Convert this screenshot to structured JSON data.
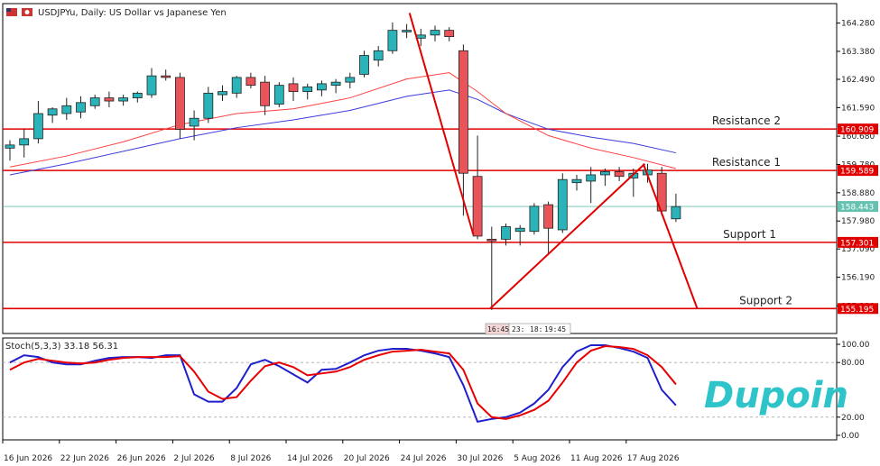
{
  "header": {
    "symbol_title": "USDJPYu, Daily:  US Dollar vs Japanese Yen",
    "stoch_title": "Stoch(5,3,3) 33.18 56.31"
  },
  "logo": {
    "text": "Dupoin"
  },
  "colors": {
    "bull": "#2ab3b8",
    "bear": "#e8545a",
    "ma_fast": "#ff4040",
    "ma_slow": "#3b3bdc",
    "level": "#e00000",
    "current": "#66c2b0",
    "stoch_main": "#1f1fcc",
    "stoch_signal": "#e80000"
  },
  "time_tags": [
    "16:45",
    "23:",
    "18:",
    "19:45"
  ],
  "chart_data": {
    "type": "candlestick",
    "title": "USDJPYu, Daily:  US Dollar vs Japanese Yen",
    "ylim": [
      154.4,
      164.9
    ],
    "price_ticks": [
      "164.280",
      "163.380",
      "162.490",
      "161.590",
      "160.680",
      "159.780",
      "158.880",
      "157.980",
      "157.090",
      "156.190",
      "155.280"
    ],
    "date_labels": [
      {
        "i": 0,
        "label": "16 Jun 2026"
      },
      {
        "i": 4,
        "label": "22 Jun 2026"
      },
      {
        "i": 8,
        "label": "26 Jun 2026"
      },
      {
        "i": 12,
        "label": "2 Jul 2026"
      },
      {
        "i": 16,
        "label": "8 Jul 2026"
      },
      {
        "i": 20,
        "label": "14 Jul 2026"
      },
      {
        "i": 24,
        "label": "20 Jul 2026"
      },
      {
        "i": 28,
        "label": "24 Jul 2026"
      },
      {
        "i": 32,
        "label": "30 Jul 2026"
      },
      {
        "i": 36,
        "label": "5 Aug 2026"
      },
      {
        "i": 40,
        "label": "11 Aug 2026"
      },
      {
        "i": 44,
        "label": "17 Aug 2026"
      }
    ],
    "candles": [
      {
        "o": 160.3,
        "h": 160.55,
        "l": 159.9,
        "c": 160.4
      },
      {
        "o": 160.4,
        "h": 160.9,
        "l": 160.0,
        "c": 160.6
      },
      {
        "o": 160.6,
        "h": 161.8,
        "l": 160.45,
        "c": 161.4
      },
      {
        "o": 161.35,
        "h": 161.6,
        "l": 161.1,
        "c": 161.55
      },
      {
        "o": 161.4,
        "h": 161.9,
        "l": 161.2,
        "c": 161.65
      },
      {
        "o": 161.45,
        "h": 161.95,
        "l": 161.25,
        "c": 161.75
      },
      {
        "o": 161.65,
        "h": 162.0,
        "l": 161.55,
        "c": 161.9
      },
      {
        "o": 161.9,
        "h": 162.1,
        "l": 161.6,
        "c": 161.8
      },
      {
        "o": 161.8,
        "h": 162.0,
        "l": 161.65,
        "c": 161.9
      },
      {
        "o": 161.9,
        "h": 162.1,
        "l": 161.75,
        "c": 162.05
      },
      {
        "o": 162.0,
        "h": 162.85,
        "l": 161.9,
        "c": 162.6
      },
      {
        "o": 162.6,
        "h": 162.8,
        "l": 162.45,
        "c": 162.55
      },
      {
        "o": 162.55,
        "h": 162.7,
        "l": 160.6,
        "c": 160.9
      },
      {
        "o": 161.0,
        "h": 161.5,
        "l": 160.55,
        "c": 161.25
      },
      {
        "o": 161.25,
        "h": 162.25,
        "l": 161.1,
        "c": 162.05
      },
      {
        "o": 162.0,
        "h": 162.3,
        "l": 161.8,
        "c": 162.1
      },
      {
        "o": 162.05,
        "h": 162.6,
        "l": 161.9,
        "c": 162.55
      },
      {
        "o": 162.55,
        "h": 162.7,
        "l": 162.2,
        "c": 162.3
      },
      {
        "o": 162.4,
        "h": 162.6,
        "l": 161.35,
        "c": 161.65
      },
      {
        "o": 161.7,
        "h": 162.4,
        "l": 161.6,
        "c": 162.3
      },
      {
        "o": 162.35,
        "h": 162.55,
        "l": 161.8,
        "c": 162.1
      },
      {
        "o": 162.1,
        "h": 162.35,
        "l": 161.85,
        "c": 162.25
      },
      {
        "o": 162.15,
        "h": 162.45,
        "l": 161.95,
        "c": 162.35
      },
      {
        "o": 162.3,
        "h": 162.5,
        "l": 162.05,
        "c": 162.4
      },
      {
        "o": 162.4,
        "h": 162.7,
        "l": 162.2,
        "c": 162.55
      },
      {
        "o": 162.65,
        "h": 163.4,
        "l": 162.55,
        "c": 163.25
      },
      {
        "o": 163.1,
        "h": 163.55,
        "l": 162.9,
        "c": 163.4
      },
      {
        "o": 163.4,
        "h": 164.3,
        "l": 163.3,
        "c": 164.05
      },
      {
        "o": 164.0,
        "h": 164.25,
        "l": 163.8,
        "c": 164.05
      },
      {
        "o": 163.8,
        "h": 164.1,
        "l": 163.55,
        "c": 163.9
      },
      {
        "o": 163.9,
        "h": 164.2,
        "l": 163.7,
        "c": 164.05
      },
      {
        "o": 164.05,
        "h": 164.15,
        "l": 163.7,
        "c": 163.85
      },
      {
        "o": 163.4,
        "h": 163.6,
        "l": 158.15,
        "c": 159.5
      },
      {
        "o": 159.4,
        "h": 160.7,
        "l": 157.4,
        "c": 157.5
      },
      {
        "o": 157.4,
        "h": 157.8,
        "l": 155.15,
        "c": 157.35
      },
      {
        "o": 157.4,
        "h": 157.9,
        "l": 157.2,
        "c": 157.8
      },
      {
        "o": 157.65,
        "h": 157.85,
        "l": 157.2,
        "c": 157.75
      },
      {
        "o": 157.65,
        "h": 158.55,
        "l": 157.55,
        "c": 158.45
      },
      {
        "o": 158.5,
        "h": 158.6,
        "l": 156.9,
        "c": 157.75
      },
      {
        "o": 157.7,
        "h": 159.5,
        "l": 157.6,
        "c": 159.3
      },
      {
        "o": 159.2,
        "h": 159.45,
        "l": 158.95,
        "c": 159.3
      },
      {
        "o": 159.25,
        "h": 159.7,
        "l": 158.55,
        "c": 159.45
      },
      {
        "o": 159.45,
        "h": 159.65,
        "l": 159.1,
        "c": 159.55
      },
      {
        "o": 159.55,
        "h": 159.7,
        "l": 159.25,
        "c": 159.4
      },
      {
        "o": 159.35,
        "h": 159.65,
        "l": 158.75,
        "c": 159.5
      },
      {
        "o": 159.45,
        "h": 159.8,
        "l": 159.2,
        "c": 159.6
      },
      {
        "o": 159.5,
        "h": 159.7,
        "l": 158.15,
        "c": 158.3
      },
      {
        "o": 158.05,
        "h": 158.85,
        "l": 157.95,
        "c": 158.44
      }
    ],
    "ma_fast": [
      {
        "i": 0,
        "v": 159.7
      },
      {
        "i": 4,
        "v": 160.05
      },
      {
        "i": 8,
        "v": 160.5
      },
      {
        "i": 12,
        "v": 161.05
      },
      {
        "i": 16,
        "v": 161.4
      },
      {
        "i": 20,
        "v": 161.55
      },
      {
        "i": 24,
        "v": 161.9
      },
      {
        "i": 28,
        "v": 162.5
      },
      {
        "i": 31,
        "v": 162.7
      },
      {
        "i": 33,
        "v": 162.1
      },
      {
        "i": 35,
        "v": 161.4
      },
      {
        "i": 38,
        "v": 160.7
      },
      {
        "i": 41,
        "v": 160.3
      },
      {
        "i": 44,
        "v": 160.0
      },
      {
        "i": 47,
        "v": 159.65
      }
    ],
    "ma_slow": [
      {
        "i": 0,
        "v": 159.45
      },
      {
        "i": 4,
        "v": 159.8
      },
      {
        "i": 8,
        "v": 160.2
      },
      {
        "i": 12,
        "v": 160.6
      },
      {
        "i": 16,
        "v": 160.95
      },
      {
        "i": 20,
        "v": 161.2
      },
      {
        "i": 24,
        "v": 161.5
      },
      {
        "i": 28,
        "v": 161.95
      },
      {
        "i": 31,
        "v": 162.15
      },
      {
        "i": 33,
        "v": 161.85
      },
      {
        "i": 35,
        "v": 161.4
      },
      {
        "i": 38,
        "v": 160.9
      },
      {
        "i": 41,
        "v": 160.65
      },
      {
        "i": 44,
        "v": 160.45
      },
      {
        "i": 47,
        "v": 160.15
      }
    ],
    "levels": [
      {
        "name": "Resistance 2",
        "price": 160.909,
        "tag": "160.909"
      },
      {
        "name": "Resistance 1",
        "price": 159.589,
        "tag": "159.589"
      },
      {
        "name": "Support 1",
        "price": 157.301,
        "tag": "157.301"
      },
      {
        "name": "Support 2",
        "price": 155.195,
        "tag": "155.195"
      }
    ],
    "current_price": {
      "price": 158.443,
      "tag": "158.443"
    },
    "trend_lines": [
      {
        "i1": 28.2,
        "p1": 164.6,
        "i2": 32.7,
        "p2": 157.55
      },
      {
        "i1": 33.9,
        "p1": 155.2,
        "i2": 44.8,
        "p2": 159.8
      },
      {
        "i1": 44.7,
        "p1": 159.8,
        "i2": 48.5,
        "p2": 155.2
      }
    ],
    "stochastic": {
      "ylim": [
        0,
        100
      ],
      "ticks": [
        {
          "v": 100,
          "label": "100.00"
        },
        {
          "v": 80,
          "label": "80.00"
        },
        {
          "v": 20,
          "label": "20.00"
        },
        {
          "v": 0,
          "label": "0.00"
        }
      ],
      "main": [
        80,
        88,
        86,
        80,
        78,
        78,
        82,
        85,
        86,
        86,
        85,
        88,
        88,
        45,
        37,
        37,
        52,
        78,
        83,
        76,
        67,
        58,
        72,
        73,
        80,
        88,
        93,
        95,
        95,
        93,
        90,
        86,
        55,
        15,
        18,
        20,
        25,
        35,
        50,
        75,
        92,
        99,
        99,
        96,
        92,
        85,
        50,
        33
      ],
      "signal": [
        72,
        80,
        84,
        82,
        80,
        79,
        80,
        83,
        85,
        86,
        86,
        86,
        87,
        70,
        48,
        40,
        42,
        60,
        76,
        80,
        75,
        66,
        68,
        70,
        75,
        83,
        88,
        92,
        93,
        94,
        92,
        90,
        72,
        35,
        20,
        18,
        22,
        28,
        38,
        58,
        80,
        93,
        98,
        97,
        95,
        88,
        75,
        56
      ]
    }
  }
}
